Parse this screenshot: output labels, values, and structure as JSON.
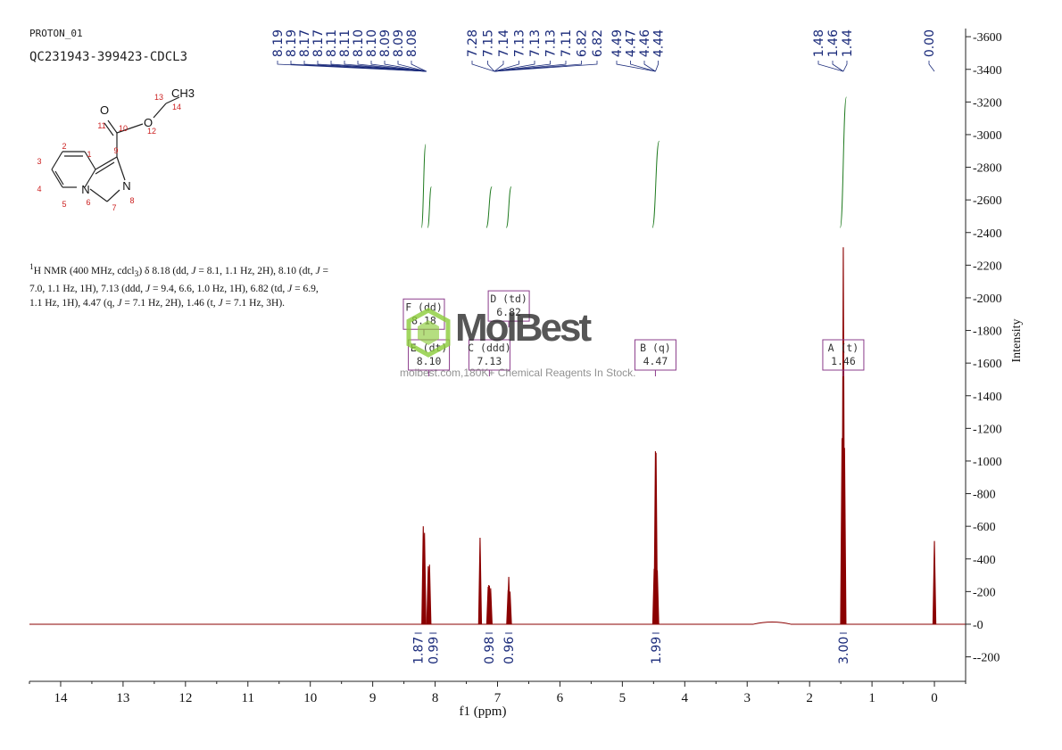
{
  "header": {
    "experiment": "PROTON_01",
    "sample": "QC231943-399423-CDCL3"
  },
  "description": {
    "html": "<sup>1</sup>H NMR (400 MHz, cdcl<sub>3</sub>) δ 8.18 (dd, <i>J</i> = 8.1, 1.1 Hz, 2H), 8.10 (dt, <i>J</i> = 7.0, 1.1 Hz, 1H), 7.13 (ddd, <i>J</i> = 9.4, 6.6, 1.0 Hz, 1H), 6.82 (td, <i>J</i> = 6.9, 1.1 Hz, 1H), 4.47 (q, <i>J</i> = 7.1 Hz, 2H), 1.46 (t, <i>J</i> = 7.1 Hz, 3H)."
  },
  "watermark": {
    "name": "MolBest",
    "tagline": "molbest.com,180K+ Chemical Reagents In Stock."
  },
  "structure": {
    "atom_labels": [
      {
        "id": "O11",
        "text": "O"
      },
      {
        "id": "O12",
        "text": "O"
      },
      {
        "id": "CH3",
        "text": "CH3"
      },
      {
        "id": "N6",
        "text": "N"
      },
      {
        "id": "N8",
        "text": "N"
      }
    ],
    "numbers": [
      "1",
      "2",
      "3",
      "4",
      "5",
      "6",
      "7",
      "8",
      "9",
      "10",
      "11",
      "12",
      "13",
      "14"
    ],
    "number_color": "#cc2222"
  },
  "chart_data": {
    "type": "line",
    "xlabel": "f1 (ppm)",
    "ylabel": "Intensity",
    "xlim": [
      14.5,
      -0.5
    ],
    "ylim": [
      -350,
      3650
    ],
    "x_ticks": [
      14,
      13,
      12,
      11,
      10,
      9,
      8,
      7,
      6,
      5,
      4,
      3,
      2,
      1,
      0
    ],
    "y_ticks": [
      -200,
      0,
      200,
      400,
      600,
      800,
      1000,
      1200,
      1400,
      1600,
      1800,
      2000,
      2200,
      2400,
      2600,
      2800,
      3000,
      3200,
      3400,
      3600
    ],
    "spectrum_color": "#8b0000",
    "integral_color": "#1f7a1f",
    "label_color": "#1a2a7a",
    "peaks": [
      {
        "ppm": 8.19,
        "height": 600
      },
      {
        "ppm": 8.17,
        "height": 560
      },
      {
        "ppm": 8.11,
        "height": 355
      },
      {
        "ppm": 8.09,
        "height": 365
      },
      {
        "ppm": 7.28,
        "height": 530
      },
      {
        "ppm": 7.15,
        "height": 230
      },
      {
        "ppm": 7.14,
        "height": 240
      },
      {
        "ppm": 7.13,
        "height": 235
      },
      {
        "ppm": 7.11,
        "height": 220
      },
      {
        "ppm": 6.83,
        "height": 210
      },
      {
        "ppm": 6.82,
        "height": 290
      },
      {
        "ppm": 6.8,
        "height": 200
      },
      {
        "ppm": 4.49,
        "height": 340
      },
      {
        "ppm": 4.47,
        "height": 1060
      },
      {
        "ppm": 4.46,
        "height": 1050
      },
      {
        "ppm": 4.44,
        "height": 330
      },
      {
        "ppm": 1.48,
        "height": 1140
      },
      {
        "ppm": 1.46,
        "height": 2310
      },
      {
        "ppm": 1.44,
        "height": 1080
      },
      {
        "ppm": 0.0,
        "height": 510
      }
    ],
    "peak_label_groups": [
      {
        "labels": [
          "8.19",
          "8.19",
          "8.17",
          "8.17",
          "8.11",
          "8.11",
          "8.10",
          "8.10",
          "8.09",
          "8.09",
          "8.08"
        ],
        "target": 8.14
      },
      {
        "labels": [
          "7.28",
          "7.15",
          "7.14",
          "7.13",
          "7.13",
          "7.13",
          "7.11",
          "6.82",
          "6.82"
        ],
        "target": 7.05
      },
      {
        "labels": [
          "4.49",
          "4.47",
          "4.46",
          "4.44"
        ],
        "target": 4.47
      },
      {
        "labels": [
          "1.48",
          "1.46",
          "1.44"
        ],
        "target": 1.46
      },
      {
        "labels": [
          "0.00"
        ],
        "target": 0.0
      }
    ],
    "integrals": [
      {
        "from": 8.22,
        "to": 8.15,
        "value": "1.87",
        "ymin": 2430,
        "ymax": 2940
      },
      {
        "from": 8.12,
        "to": 8.06,
        "value": "0.99",
        "ymin": 2430,
        "ymax": 2680
      },
      {
        "from": 7.18,
        "to": 7.09,
        "value": "0.98",
        "ymin": 2430,
        "ymax": 2680
      },
      {
        "from": 6.86,
        "to": 6.78,
        "value": "0.96",
        "ymin": 2430,
        "ymax": 2680
      },
      {
        "from": 4.52,
        "to": 4.41,
        "value": "1.99",
        "ymin": 2430,
        "ymax": 2960
      },
      {
        "from": 1.51,
        "to": 1.41,
        "value": "3.00",
        "ymin": 2430,
        "ymax": 3230
      }
    ],
    "multiplet_boxes": [
      {
        "letter": "F",
        "type": "(dd)",
        "shift": "8.18",
        "ppm": 8.18,
        "y": 1900
      },
      {
        "letter": "E",
        "type": "(dt)",
        "shift": "8.10",
        "ppm": 8.1,
        "y": 1650
      },
      {
        "letter": "D",
        "type": "(td)",
        "shift": "6.82",
        "ppm": 6.82,
        "y": 1950
      },
      {
        "letter": "C",
        "type": "(ddd)",
        "shift": "7.13",
        "ppm": 7.13,
        "y": 1650
      },
      {
        "letter": "B",
        "type": "(q)",
        "shift": "4.47",
        "ppm": 4.47,
        "y": 1650
      },
      {
        "letter": "A",
        "type": "(t)",
        "shift": "1.46",
        "ppm": 1.46,
        "y": 1650
      }
    ]
  }
}
